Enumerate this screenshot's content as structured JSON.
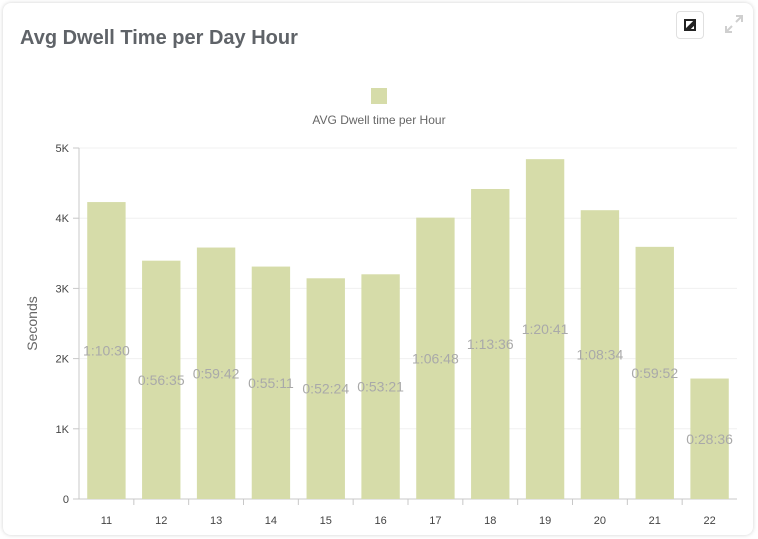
{
  "card": {
    "title": "Avg Dwell Time per Day Hour"
  },
  "toolbar": {
    "chart_icon": "chart-image-icon",
    "expand_icon": "expand-icon"
  },
  "chart_data": {
    "type": "bar",
    "title": "Avg Dwell Time per Day Hour",
    "xlabel": "",
    "ylabel": "Seconds",
    "ylim": [
      0,
      5000
    ],
    "yticks": [
      0,
      1000,
      2000,
      3000,
      4000,
      5000
    ],
    "ytick_labels": [
      "0",
      "1K",
      "2K",
      "3K",
      "4K",
      "5K"
    ],
    "categories": [
      "11",
      "12",
      "13",
      "14",
      "15",
      "16",
      "17",
      "18",
      "19",
      "20",
      "21",
      "22"
    ],
    "series": [
      {
        "name": "AVG Dwell time per Hour",
        "color": "#d6dca9",
        "values": [
          4230,
          3395,
          3582,
          3311,
          3144,
          3201,
          4008,
          4416,
          4841,
          4114,
          3592,
          1716
        ],
        "labels": [
          "1:10:30",
          "0:56:35",
          "0:59:42",
          "0:55:11",
          "0:52:24",
          "0:53:21",
          "1:06:48",
          "1:13:36",
          "1:20:41",
          "1:08:34",
          "0:59:52",
          "0:28:36"
        ]
      }
    ],
    "legend": "top-center",
    "grid": true
  }
}
